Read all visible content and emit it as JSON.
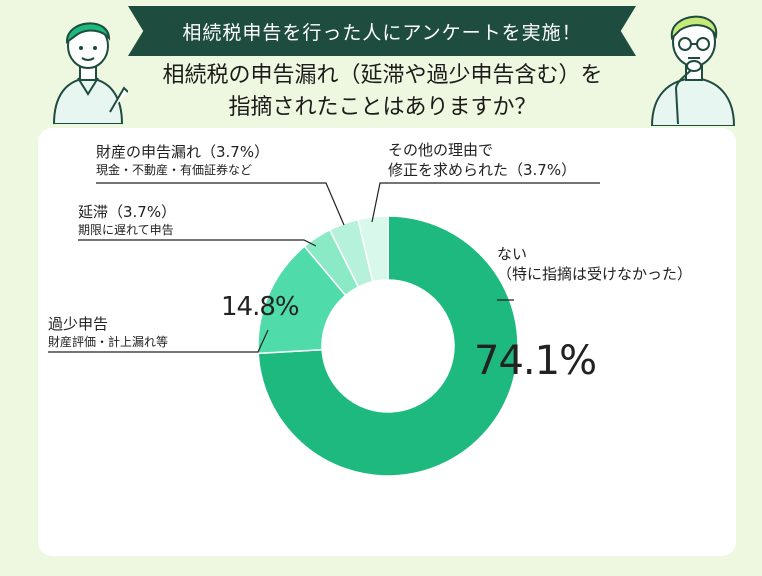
{
  "header": {
    "banner": "相続税申告を行った人にアンケートを実施！",
    "question_line1": "相続税の申告漏れ（延滞や過少申告含む）を",
    "question_line2": "指摘されたことはありますか？"
  },
  "colors": {
    "banner_bg": "#1e4c3f",
    "page_bg": "#eef7df",
    "slice_main": "#1db97f",
    "slice_2": "#4fdcaa",
    "slice_3": "#8aeac6",
    "slice_4": "#b6f2db",
    "slice_5": "#d9f8ec"
  },
  "chart_data": {
    "type": "pie",
    "donut": true,
    "slices": [
      {
        "label": "ない",
        "label_line2": "（特に指摘は受けなかった）",
        "value": 74.1,
        "value_text": "74.1%"
      },
      {
        "label": "過少申告",
        "label_line2": "財産評価・計上漏れ等",
        "value": 14.8,
        "value_text": "14.8%"
      },
      {
        "label": "延滞（3.7%）",
        "label_line2": "期限に遅れて申告",
        "value": 3.7
      },
      {
        "label": "財産の申告漏れ（3.7%）",
        "label_line2": "現金・不動産・有価証券など",
        "value": 3.7
      },
      {
        "label": "その他の理由で",
        "label_line2": "修正を求められた（3.7%）",
        "value": 3.7
      }
    ]
  }
}
